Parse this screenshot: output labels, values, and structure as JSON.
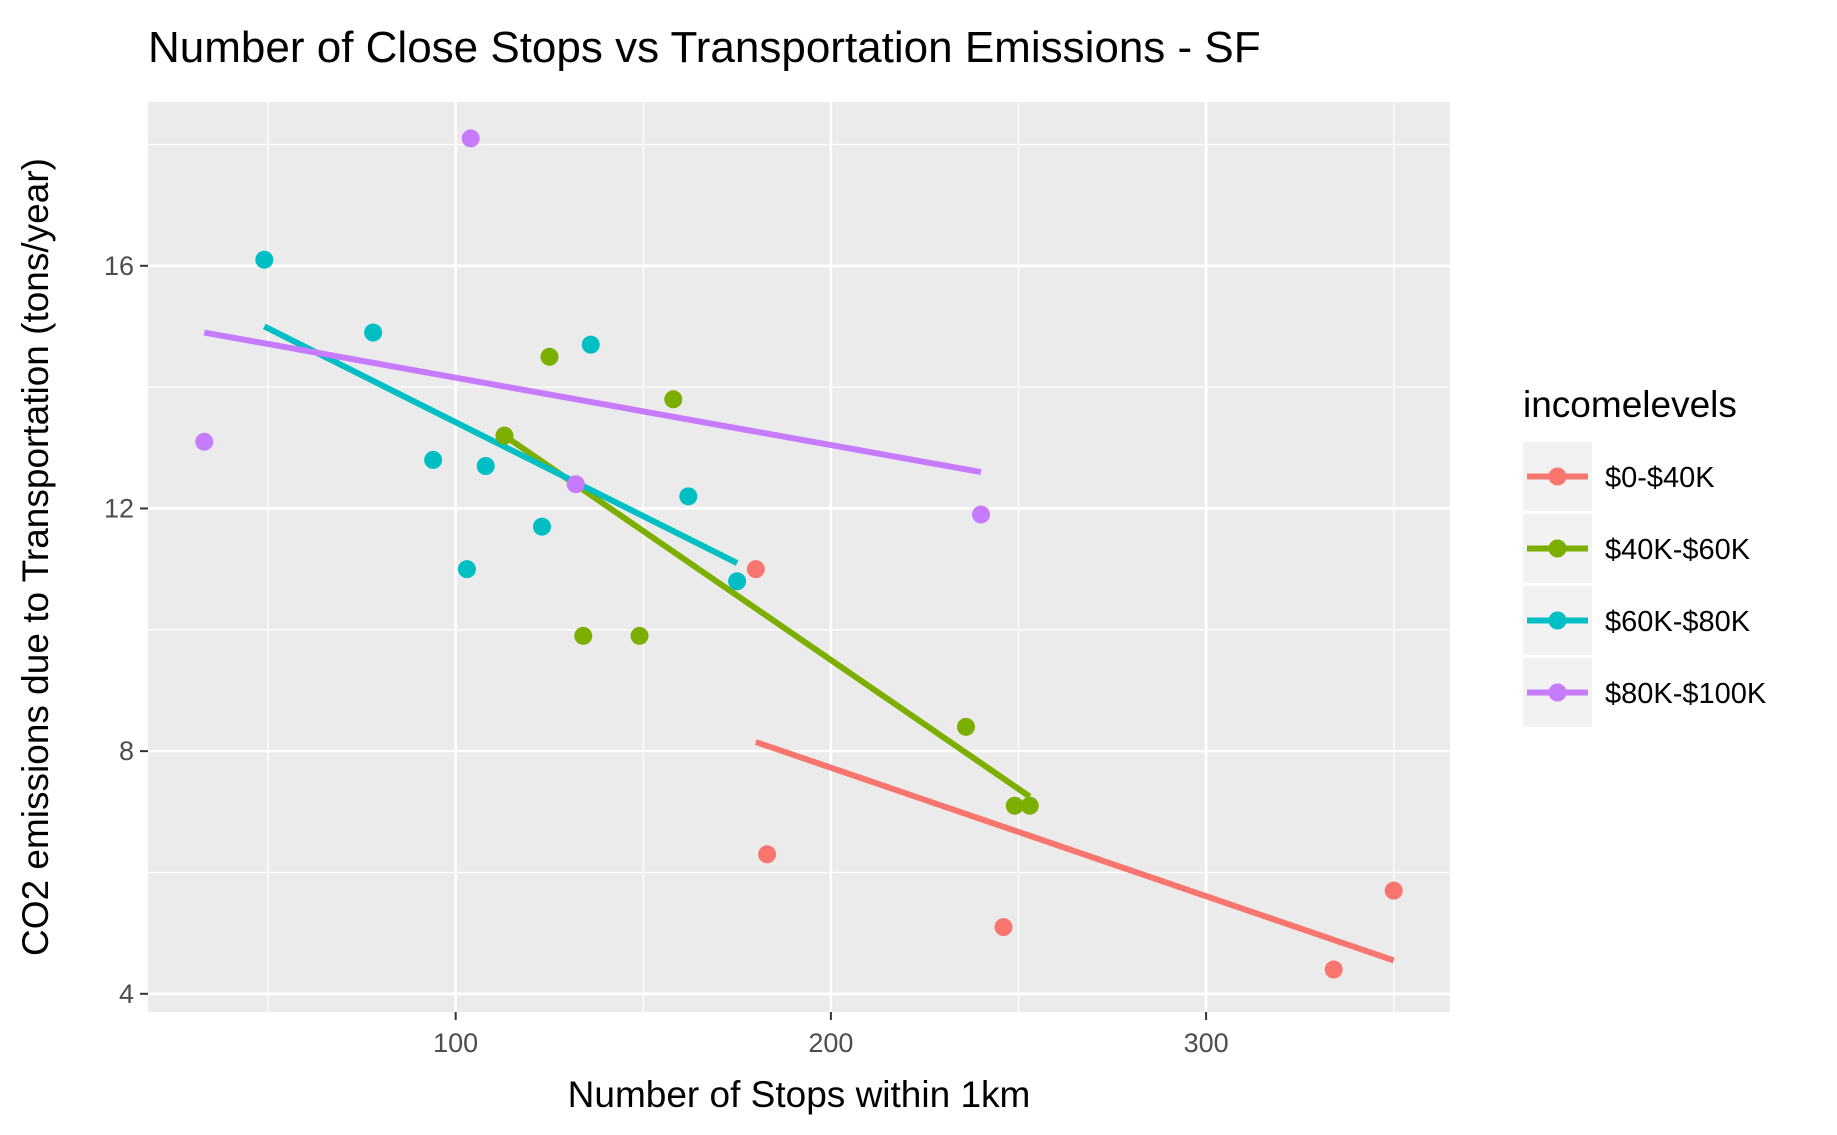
{
  "chart_data": {
    "type": "scatter",
    "title": "Number of Close Stops vs Transportation Emissions - SF",
    "xlabel": "Number of Stops within 1km",
    "ylabel": "CO2 emissions due to Transportation (tons/year)",
    "xlim": [
      18,
      365
    ],
    "ylim": [
      3.7,
      18.7
    ],
    "x_ticks": [
      100,
      200,
      300
    ],
    "y_ticks": [
      4,
      8,
      12,
      16
    ],
    "grid": true,
    "legend": {
      "title": "incomelevels",
      "placement": "right"
    },
    "series": [
      {
        "name": "$0-$40K",
        "color": "#F8766D",
        "points": [
          [
            180,
            11.0
          ],
          [
            183,
            6.3
          ],
          [
            246,
            5.1
          ],
          [
            334,
            4.4
          ],
          [
            350,
            5.7
          ]
        ],
        "trend": [
          [
            180,
            8.15
          ],
          [
            350,
            4.55
          ]
        ]
      },
      {
        "name": "$40K-$60K",
        "color": "#7CAE00",
        "points": [
          [
            113,
            13.2
          ],
          [
            125,
            14.5
          ],
          [
            134,
            9.9
          ],
          [
            149,
            9.9
          ],
          [
            158,
            13.8
          ],
          [
            236,
            8.4
          ],
          [
            249,
            7.1
          ],
          [
            253,
            7.1
          ]
        ],
        "trend": [
          [
            113,
            13.2
          ],
          [
            253,
            7.25
          ]
        ]
      },
      {
        "name": "$60K-$80K",
        "color": "#00BFC4",
        "points": [
          [
            49,
            16.1
          ],
          [
            78,
            14.9
          ],
          [
            94,
            12.8
          ],
          [
            103,
            11.0
          ],
          [
            108,
            12.7
          ],
          [
            123,
            11.7
          ],
          [
            136,
            14.7
          ],
          [
            162,
            12.2
          ],
          [
            175,
            10.8
          ]
        ],
        "trend": [
          [
            49,
            15.0
          ],
          [
            175,
            11.1
          ]
        ]
      },
      {
        "name": "$80K-$100K",
        "color": "#C77CFF",
        "points": [
          [
            33,
            13.1
          ],
          [
            104,
            18.1
          ],
          [
            132,
            12.4
          ],
          [
            240,
            11.9
          ]
        ],
        "trend": [
          [
            33,
            14.9
          ],
          [
            240,
            12.6
          ]
        ]
      }
    ]
  }
}
